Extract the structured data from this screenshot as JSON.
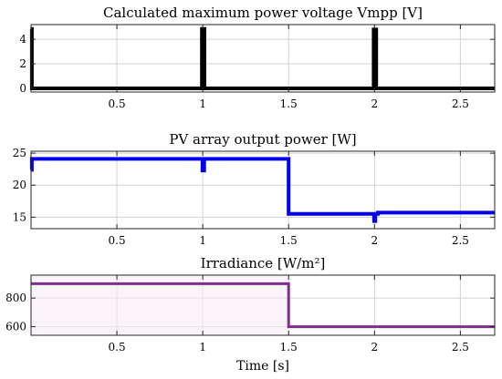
{
  "chart_data": [
    {
      "type": "line",
      "title": "Calculated maximum power voltage Vmpp [V]",
      "xlabel": "",
      "ylabel": "",
      "xlim": [
        0,
        2.7
      ],
      "ylim": [
        -0.3,
        5.2
      ],
      "xticks": [
        0.5,
        1,
        1.5,
        2,
        2.5
      ],
      "xtick_labels": [
        "0.5",
        "1",
        "1.5",
        "2",
        "2.5"
      ],
      "yticks": [
        0,
        2,
        4
      ],
      "ytick_labels": [
        "0",
        "2",
        "4"
      ],
      "grid": true,
      "series": [
        {
          "color": "#000000",
          "x": [
            0,
            0.005,
            0.005,
            0.012,
            0.012,
            0.995,
            0.995,
            1.01,
            1.01,
            1.995,
            1.995,
            2.01,
            2.01,
            2.7
          ],
          "y": [
            4.85,
            4.85,
            0,
            0,
            0,
            0,
            4.85,
            4.85,
            0,
            0,
            4.8,
            4.8,
            0,
            0
          ]
        }
      ]
    },
    {
      "type": "line",
      "title": "PV array output power [W]",
      "xlabel": "",
      "ylabel": "",
      "xlim": [
        0,
        2.7
      ],
      "ylim": [
        13.2,
        25.3
      ],
      "xticks": [
        0.5,
        1,
        1.5,
        2,
        2.5
      ],
      "xtick_labels": [
        "0.5",
        "1",
        "1.5",
        "2",
        "2.5"
      ],
      "yticks": [
        15,
        20,
        25
      ],
      "ytick_labels": [
        "15",
        "20",
        "25"
      ],
      "grid": true,
      "series": [
        {
          "color": "#0000ee",
          "x": [
            0,
            0.005,
            0.005,
            0.01,
            0.01,
            0.998,
            0.998,
            1.008,
            1.008,
            1.5,
            1.5,
            1.998,
            1.998,
            2.005,
            2.005,
            2.02,
            2.02,
            2.7
          ],
          "y": [
            22.4,
            22.4,
            24.1,
            24.1,
            24.1,
            24.1,
            22.3,
            22.3,
            24.1,
            24.1,
            15.5,
            15.5,
            14.4,
            14.4,
            15.5,
            15.5,
            15.7,
            15.7
          ]
        }
      ]
    },
    {
      "type": "line",
      "title": "Irradiance [W/m²]",
      "xlabel": "Time [s]",
      "ylabel": "",
      "xlim": [
        0,
        2.7
      ],
      "ylim": [
        540,
        960
      ],
      "xticks": [
        0.5,
        1,
        1.5,
        2,
        2.5
      ],
      "xtick_labels": [
        "0.5",
        "1",
        "1.5",
        "2",
        "2.5"
      ],
      "yticks": [
        600,
        800
      ],
      "ytick_labels": [
        "600",
        "800"
      ],
      "grid": true,
      "series": [
        {
          "color": "#7e2f8e",
          "x": [
            0,
            1.5,
            1.5,
            2.7
          ],
          "y": [
            900,
            900,
            600,
            600
          ]
        }
      ]
    }
  ]
}
